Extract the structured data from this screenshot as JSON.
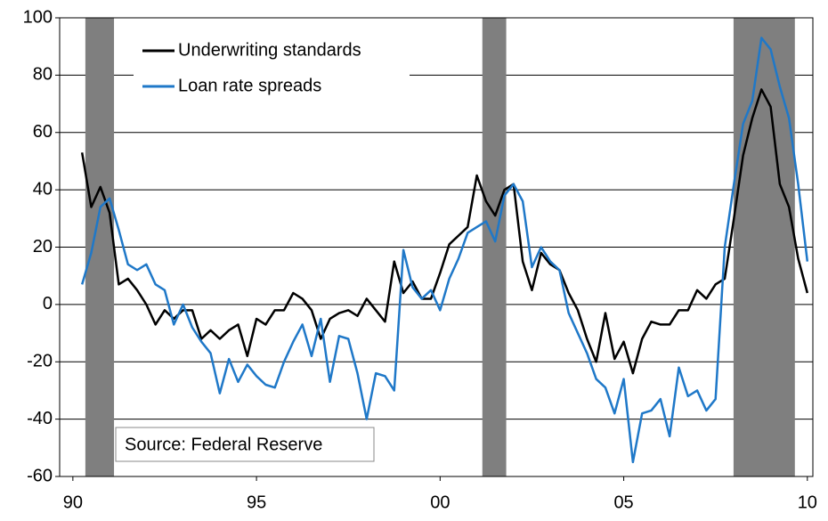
{
  "chart_data": {
    "type": "line",
    "x": [
      1990.25,
      1990.5,
      1990.75,
      1991,
      1991.25,
      1991.5,
      1991.75,
      1992,
      1992.25,
      1992.5,
      1992.75,
      1993,
      1993.25,
      1993.5,
      1993.75,
      1994,
      1994.25,
      1994.5,
      1994.75,
      1995,
      1995.25,
      1995.5,
      1995.75,
      1996,
      1996.25,
      1996.5,
      1996.75,
      1997,
      1997.25,
      1997.5,
      1997.75,
      1998,
      1998.25,
      1998.5,
      1998.75,
      1999,
      1999.25,
      1999.5,
      1999.75,
      2000,
      2000.25,
      2000.5,
      2000.75,
      2001,
      2001.25,
      2001.5,
      2001.75,
      2002,
      2002.25,
      2002.5,
      2002.75,
      2003,
      2003.25,
      2003.5,
      2003.75,
      2004,
      2004.25,
      2004.5,
      2004.75,
      2005,
      2005.25,
      2005.5,
      2005.75,
      2006,
      2006.25,
      2006.5,
      2006.75,
      2007,
      2007.25,
      2007.5,
      2007.75,
      2008,
      2008.25,
      2008.5,
      2008.75,
      2009,
      2009.25,
      2009.5,
      2009.75,
      2010
    ],
    "series": [
      {
        "name": "Underwriting standards",
        "color": "#000000",
        "values": [
          53,
          34,
          41,
          32,
          7,
          9,
          5,
          0,
          -7,
          -2,
          -5,
          -2,
          -2,
          -12,
          -9,
          -12,
          -9,
          -7,
          -18,
          -5,
          -7,
          -2,
          -2,
          4,
          2,
          -2,
          -12,
          -5,
          -3,
          -2,
          -4,
          2,
          -2,
          -6,
          15,
          4,
          8,
          2,
          2,
          11,
          21,
          24,
          27,
          45,
          36,
          31,
          40,
          42,
          15,
          5,
          18,
          14,
          12,
          4,
          -2,
          -12,
          -20,
          -3,
          -19,
          -13,
          -24,
          -12,
          -6,
          -7,
          -7,
          -2,
          -2,
          5,
          2,
          7,
          9,
          30,
          52,
          65,
          75,
          69,
          42,
          34,
          16,
          4
        ]
      },
      {
        "name": "Loan rate spreads",
        "color": "#1f78c8",
        "values": [
          7,
          18,
          34,
          37,
          26,
          14,
          12,
          14,
          7,
          5,
          -7,
          0,
          -8,
          -13,
          -17,
          -31,
          -19,
          -27,
          -21,
          -25,
          -28,
          -29,
          -20,
          -13,
          -7,
          -18,
          -5,
          -27,
          -11,
          -12,
          -24,
          -40,
          -24,
          -25,
          -30,
          19,
          6,
          2,
          5,
          -2,
          9,
          16,
          25,
          27,
          29,
          22,
          38,
          42,
          36,
          13,
          20,
          15,
          12,
          -3,
          -10,
          -17,
          -26,
          -29,
          -38,
          -26,
          -55,
          -38,
          -37,
          -33,
          -46,
          -22,
          -32,
          -30,
          -37,
          -33,
          20,
          42,
          63,
          71,
          93,
          89,
          76,
          65,
          42,
          15
        ]
      }
    ],
    "shaded_periods": [
      [
        1990.34,
        1991.12
      ],
      [
        2001.15,
        2001.8
      ],
      [
        2007.99,
        2009.66
      ]
    ],
    "shade_color": "#7f7f7f",
    "xlim": [
      1989.64,
      2010.15
    ],
    "xticks": [
      {
        "value": 1990,
        "label": "90"
      },
      {
        "value": 1995,
        "label": "95"
      },
      {
        "value": 2000,
        "label": "00"
      },
      {
        "value": 2005,
        "label": "05"
      },
      {
        "value": 2010,
        "label": "10"
      }
    ],
    "ylim": [
      -60,
      100
    ],
    "yticks": [
      100,
      80,
      60,
      40,
      20,
      0,
      -20,
      -40,
      -60
    ],
    "grid": true,
    "legend": "upper-left",
    "annotation": "Source: Federal Reserve"
  }
}
